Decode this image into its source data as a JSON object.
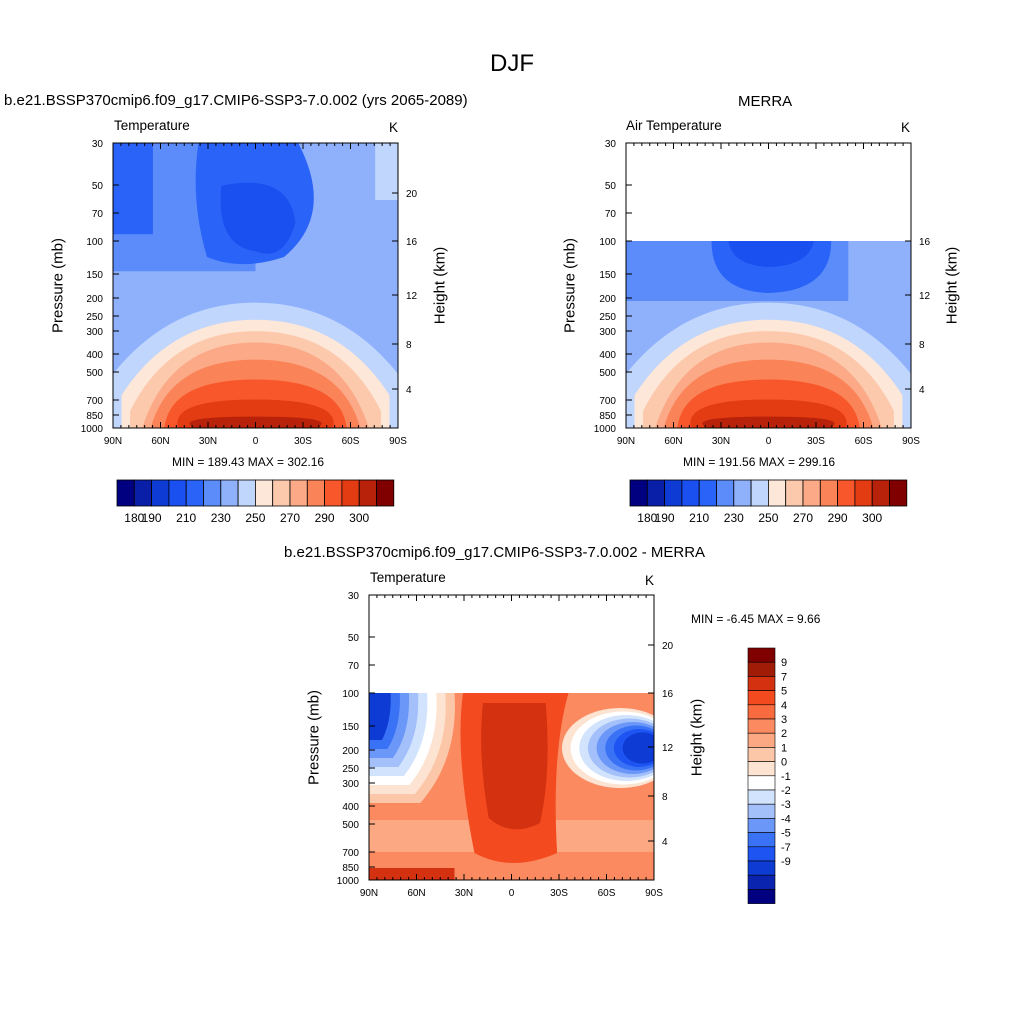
{
  "page": {
    "title": "DJF"
  },
  "colors": {
    "levels_abs": [
      "#000080",
      "#0a1fa8",
      "#0d3bd4",
      "#1a4ff0",
      "#2a63f8",
      "#5b8cfa",
      "#8fb0fb",
      "#c0d6fd",
      "#fde7d8",
      "#fcc9ad",
      "#fba986",
      "#fb8358",
      "#f8572c",
      "#e33b12",
      "#b8220a",
      "#800000"
    ],
    "levels_diff": [
      "#000080",
      "#0a24b0",
      "#0d3bd4",
      "#1d54f2",
      "#3a72f6",
      "#6b97f8",
      "#a3c0fb",
      "#d2e3fd",
      "#ffffff",
      "#fde3d1",
      "#fcc7a8",
      "#fba883",
      "#fb8a60",
      "#f96b3e",
      "#f34b1f",
      "#d43110",
      "#a01c06",
      "#800000"
    ]
  },
  "chart_data": [
    {
      "type": "heatmap",
      "title": "b.e21.BSSP370cmip6.f09_g17.CMIP6-SSP3-7.0.002 (yrs 2065-2089)",
      "variable_left": "Temperature",
      "units_right": "K",
      "ylabel": "Pressure (mb)",
      "ylabel_right": "Height (km)",
      "x_ticks": [
        "90N",
        "60N",
        "30N",
        "0",
        "30S",
        "60S",
        "90S"
      ],
      "y_ticks": [
        "30",
        "50",
        "70",
        "100",
        "150",
        "200",
        "250",
        "300",
        "400",
        "500",
        "700",
        "850",
        "1000"
      ],
      "y_ticks_right": [
        "20",
        "16",
        "12",
        "8",
        "4"
      ],
      "stats": "MIN = 189.43  MAX = 302.16",
      "colorbar_labels": [
        "180",
        "190",
        "210",
        "230",
        "250",
        "270",
        "290",
        "300"
      ],
      "min": 189.43,
      "max": 302.16
    },
    {
      "type": "heatmap",
      "title": "MERRA",
      "variable_left": "Air Temperature",
      "units_right": "K",
      "ylabel": "Pressure (mb)",
      "ylabel_right": "Height (km)",
      "x_ticks": [
        "90N",
        "60N",
        "30N",
        "0",
        "30S",
        "60S",
        "90S"
      ],
      "y_ticks": [
        "30",
        "50",
        "70",
        "100",
        "150",
        "200",
        "250",
        "300",
        "400",
        "500",
        "700",
        "850",
        "1000"
      ],
      "y_ticks_right": [
        "16",
        "12",
        "8",
        "4"
      ],
      "stats": "MIN = 191.56  MAX = 299.16",
      "colorbar_labels": [
        "180",
        "190",
        "210",
        "230",
        "250",
        "270",
        "290",
        "300"
      ],
      "min": 191.56,
      "max": 299.16
    },
    {
      "type": "heatmap",
      "title": "b.e21.BSSP370cmip6.f09_g17.CMIP6-SSP3-7.0.002 - MERRA",
      "variable_left": "Temperature",
      "units_right": "K",
      "ylabel": "Pressure (mb)",
      "ylabel_right": "Height (km)",
      "x_ticks": [
        "90N",
        "60N",
        "30N",
        "0",
        "30S",
        "60S",
        "90S"
      ],
      "y_ticks": [
        "30",
        "50",
        "70",
        "100",
        "150",
        "200",
        "250",
        "300",
        "400",
        "500",
        "700",
        "850",
        "1000"
      ],
      "y_ticks_right": [
        "20",
        "16",
        "12",
        "8",
        "4"
      ],
      "stats": "MIN =  -6.45  MAX =   9.66",
      "colorbar_labels": [
        "9",
        "7",
        "5",
        "4",
        "3",
        "2",
        "1",
        "0",
        "-1",
        "-2",
        "-3",
        "-4",
        "-5",
        "-7",
        "-9"
      ],
      "min": -6.45,
      "max": 9.66
    }
  ]
}
